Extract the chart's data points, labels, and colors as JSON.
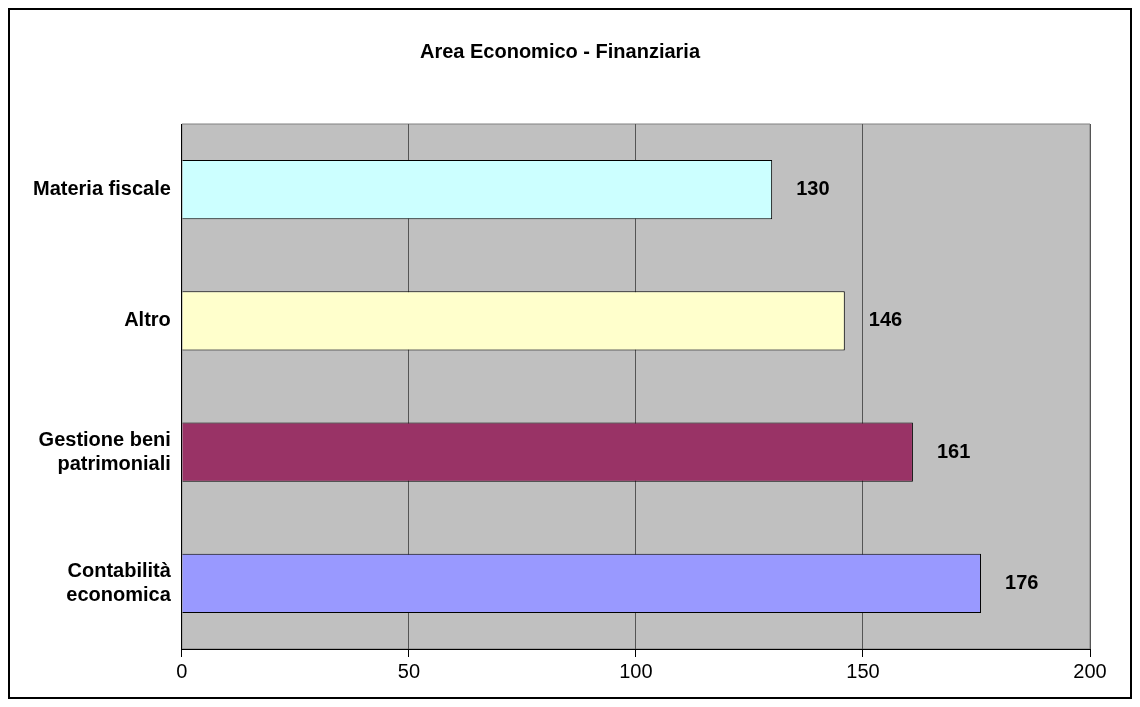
{
  "chart_data": {
    "type": "bar",
    "orientation": "horizontal",
    "title": "Area Economico - Finanziaria",
    "categories": [
      "Materia fiscale",
      "Altro",
      "Gestione beni patrimoniali",
      "Contabilità economica"
    ],
    "values": [
      130,
      146,
      161,
      176
    ],
    "colors": [
      "#ccffff",
      "#ffffcc",
      "#993366",
      "#9999ff"
    ],
    "xlim": [
      0,
      200
    ],
    "xticks": [
      0,
      50,
      100,
      150,
      200
    ],
    "grid": "x",
    "data_labels": true,
    "legend": false
  }
}
